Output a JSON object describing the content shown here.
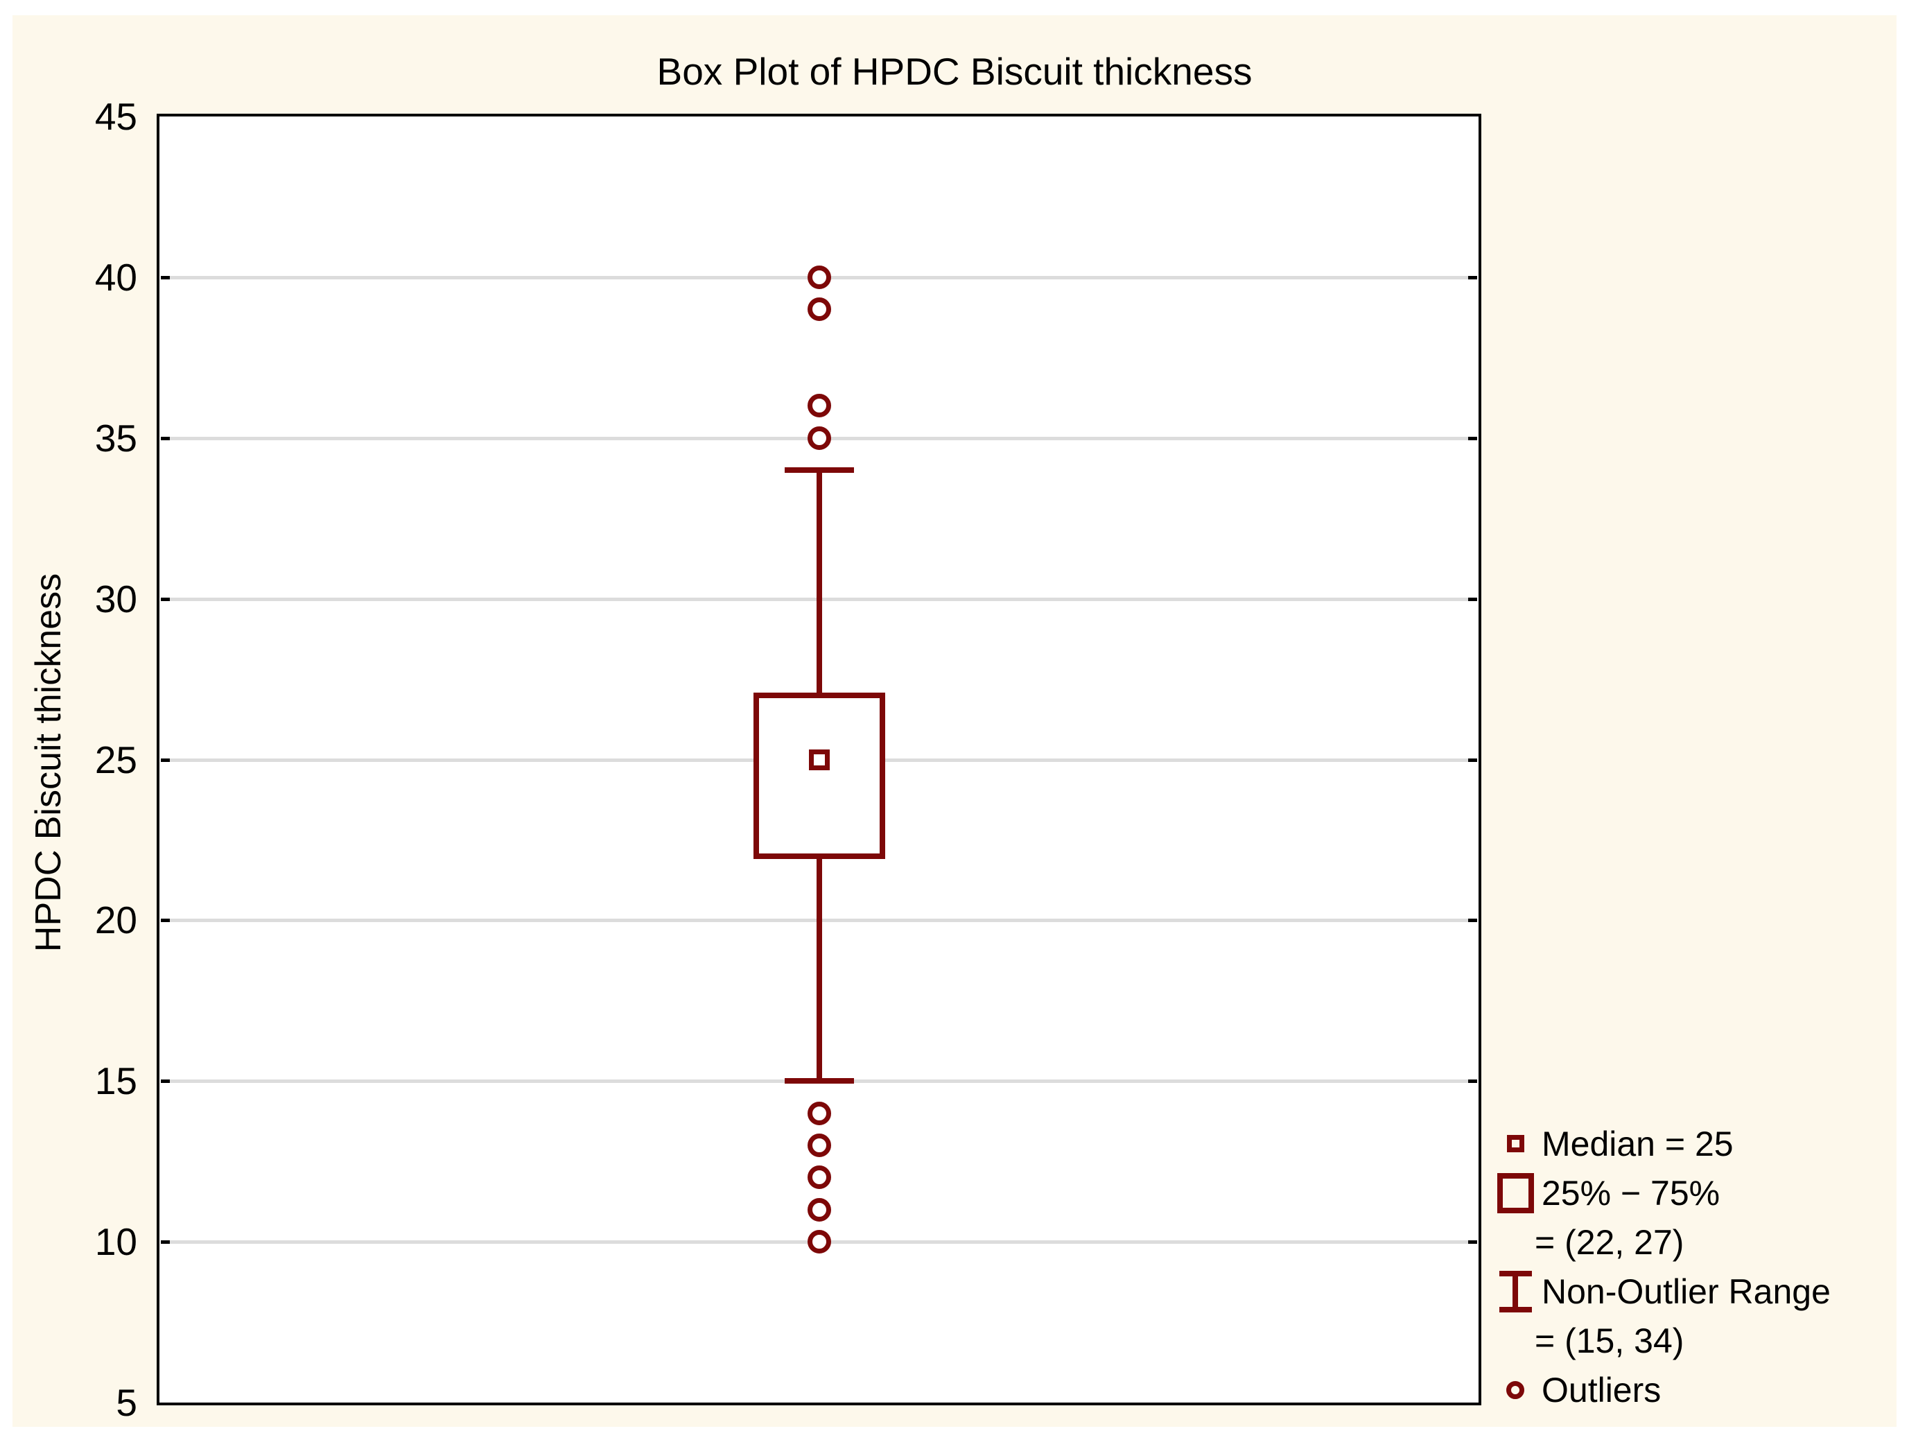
{
  "title": "Box Plot of HPDC Biscuit thickness",
  "colors": {
    "accent": "#7D0808",
    "panel_background": "#FDF8EB",
    "plot_background": "#FFFFFF",
    "gridline": "#DCDCDC",
    "frame": "#000000",
    "text": "#000000"
  },
  "chart_data": {
    "type": "box",
    "title": "Box Plot of HPDC Biscuit thickness",
    "xlabel": "",
    "ylabel": "HPDC Biscuit thickness",
    "ylim": [
      5,
      45
    ],
    "yticks": [
      5,
      10,
      15,
      20,
      25,
      30,
      35,
      40,
      45
    ],
    "grid": "horizontal-only",
    "series": [
      {
        "name": "HPDC Biscuit thickness",
        "median": 25,
        "q1": 22,
        "q3": 27,
        "non_outlier_low": 15,
        "non_outlier_high": 34,
        "outliers_above": [
          40,
          39,
          36,
          35
        ],
        "outliers_below": [
          14,
          13,
          12,
          11,
          10
        ]
      }
    ],
    "legend": {
      "position": "bottom-right",
      "items": [
        {
          "symbol": "median-square",
          "label": "Median = 25"
        },
        {
          "symbol": "box",
          "label": "25% − 75%"
        },
        {
          "symbol": null,
          "label": "= (22, 27)"
        },
        {
          "symbol": "whisker-range",
          "label": "Non-Outlier Range"
        },
        {
          "symbol": null,
          "label": "= (15, 34)"
        },
        {
          "symbol": "outlier-circle",
          "label": "Outliers"
        }
      ]
    }
  }
}
